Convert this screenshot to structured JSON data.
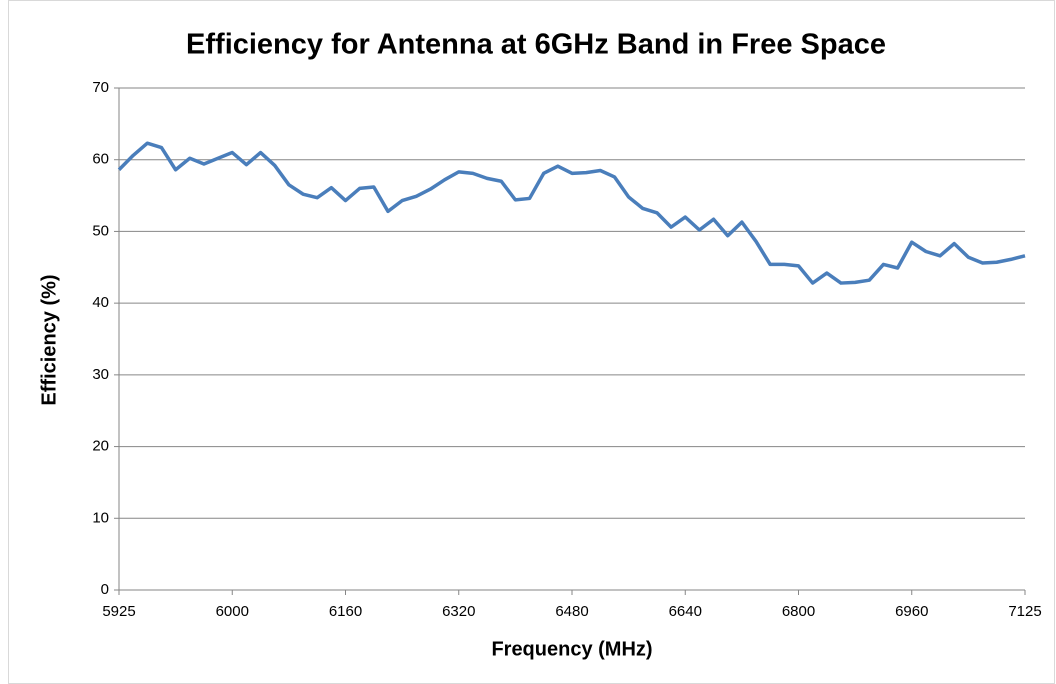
{
  "chart_data": {
    "type": "line",
    "title": "Efficiency for Antenna at 6GHz Band in Free Space",
    "x_label": "Frequency  (MHz)",
    "y_label": "Efficiency (%)",
    "categories": [
      "5925",
      null,
      null,
      null,
      null,
      null,
      null,
      null,
      "6000",
      null,
      null,
      null,
      null,
      null,
      null,
      null,
      "6160",
      null,
      null,
      null,
      null,
      null,
      null,
      null,
      "6320",
      null,
      null,
      null,
      null,
      null,
      null,
      null,
      "6480",
      null,
      null,
      null,
      null,
      null,
      null,
      null,
      "6640",
      null,
      null,
      null,
      null,
      null,
      null,
      null,
      "6800",
      null,
      null,
      null,
      null,
      null,
      null,
      null,
      "6960",
      null,
      null,
      null,
      null,
      null,
      null,
      null,
      "7125"
    ],
    "series": [
      {
        "name": "Efficiency",
        "color": "#4a7ebb",
        "values": [
          58.6,
          60.6,
          62.3,
          61.7,
          58.6,
          60.2,
          59.4,
          60.2,
          61.0,
          59.3,
          61.0,
          59.2,
          56.5,
          55.2,
          54.7,
          56.1,
          54.3,
          56.0,
          56.2,
          52.8,
          54.3,
          54.9,
          55.9,
          57.2,
          58.3,
          58.1,
          57.4,
          57.0,
          54.4,
          54.6,
          58.1,
          59.1,
          58.1,
          58.2,
          58.5,
          57.6,
          54.8,
          53.2,
          52.6,
          50.6,
          52.0,
          50.2,
          51.7,
          49.4,
          51.3,
          48.6,
          45.4,
          45.4,
          45.2,
          42.8,
          44.2,
          42.8,
          42.9,
          43.2,
          45.4,
          44.9,
          48.5,
          47.2,
          46.6,
          48.3,
          46.4,
          45.6,
          45.7,
          46.1,
          46.6
        ]
      }
    ],
    "ylim": [
      0,
      70
    ],
    "yticks": [
      0,
      10,
      20,
      30,
      40,
      50,
      60,
      70
    ],
    "grid": true
  }
}
